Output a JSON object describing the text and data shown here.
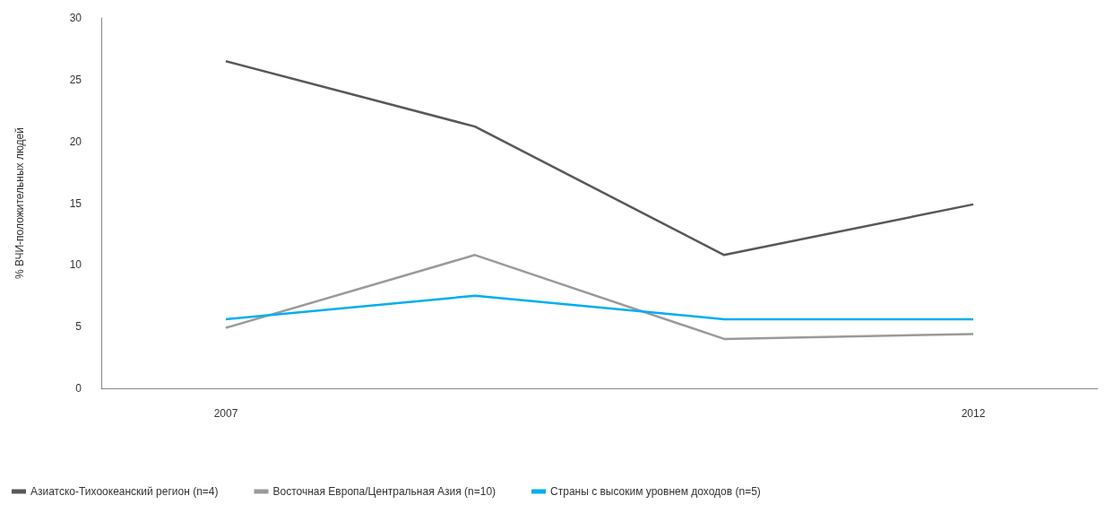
{
  "chart_data": {
    "type": "line",
    "ylabel": "% ВЧИ-положительных людей",
    "categories": [
      "2007",
      null,
      null,
      "2012"
    ],
    "series": [
      {
        "name": "Азиатско-Тихоокеанский регион (n=4)",
        "color": "#58585a",
        "values": [
          26.5,
          21.2,
          10.8,
          14.9
        ]
      },
      {
        "name": "Восточная Европа/Центральная Азия (n=10)",
        "color": "#9a9a9a",
        "values": [
          4.9,
          10.8,
          4.0,
          4.4
        ]
      },
      {
        "name": "Страны с высоким уровнем доходов (n=5)",
        "color": "#00aeef",
        "values": [
          5.6,
          7.5,
          5.6,
          5.6
        ]
      }
    ],
    "ylim": [
      0,
      30
    ],
    "yticks": [
      0,
      5,
      10,
      15,
      20,
      25,
      30
    ],
    "grid": false,
    "legend": "bottom left",
    "marker": "none",
    "line_style": "solid"
  }
}
